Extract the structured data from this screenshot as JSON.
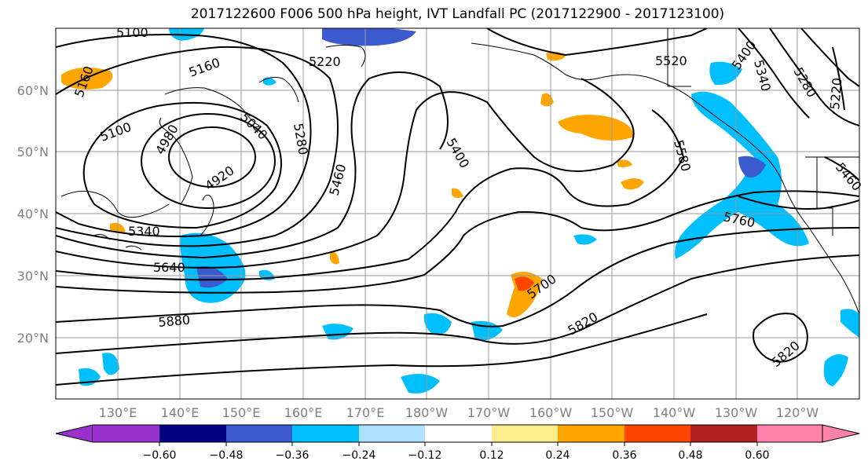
{
  "title": "2017122600 F006 500 hPa height, IVT Landfall PC (2017122900 - 2017123100)",
  "lat_labels": [
    "60°N",
    "50°N",
    "40°N",
    "30°N",
    "20°N"
  ],
  "lon_labels": [
    "130°E",
    "140°E",
    "150°E",
    "160°E",
    "170°E",
    "180°W",
    "170°W",
    "160°W",
    "150°W",
    "140°W",
    "130°W",
    "120°W"
  ],
  "contour_labels": [
    "5100",
    "5160",
    "5220",
    "5520",
    "5400",
    "5340",
    "5280",
    "5220",
    "5160",
    "5100",
    "4980",
    "5040",
    "5280",
    "5400",
    "4920",
    "5460",
    "5580",
    "5460",
    "5340",
    "5760",
    "5640",
    "5700",
    "5880",
    "5820",
    "5820"
  ],
  "colorbar": {
    "ticks": [
      "−0.60",
      "−0.48",
      "−0.36",
      "−0.24",
      "−0.12",
      "0.12",
      "0.24",
      "0.36",
      "0.48",
      "0.60"
    ],
    "colors": [
      "#9932cc",
      "#000080",
      "#3a5acd",
      "#00bfff",
      "#b0e2ff",
      "#ffffff",
      "#ffec8b",
      "#ffa500",
      "#ff4500",
      "#b22222",
      "#ff82ab"
    ]
  }
}
